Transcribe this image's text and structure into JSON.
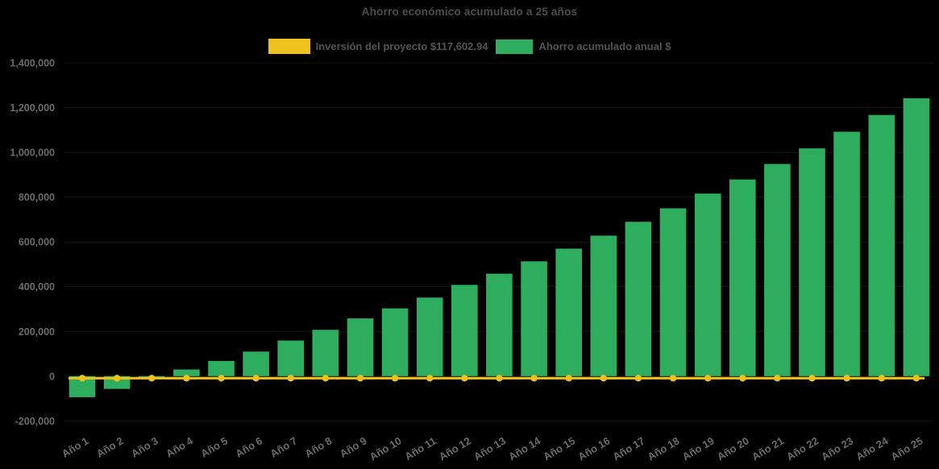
{
  "chart_data": {
    "type": "bar",
    "title": "Ahorro económico acumulado a 25 años",
    "categories": [
      "Año 1",
      "Año 2",
      "Año 3",
      "Año 4",
      "Año 5",
      "Año 6",
      "Año 7",
      "Año 8",
      "Año 9",
      "Año 10",
      "Año 11",
      "Año 12",
      "Año 13",
      "Año 14",
      "Año 15",
      "Año 16",
      "Año 17",
      "Año 18",
      "Año 19",
      "Año 20",
      "Año 21",
      "Año 22",
      "Año 23",
      "Año 24",
      "Año 25"
    ],
    "series": [
      {
        "name": "Inversión del proyecto $117,602.94",
        "type": "line",
        "color": "#EEC11E",
        "values": [
          0,
          0,
          0,
          0,
          0,
          0,
          0,
          0,
          0,
          0,
          0,
          0,
          0,
          0,
          0,
          0,
          0,
          0,
          0,
          0,
          0,
          0,
          0,
          0,
          0
        ]
      },
      {
        "name": "Ahorro acumulado anual $",
        "type": "bar",
        "color": "#2EAD5E",
        "values": [
          -94000,
          -57000,
          -5000,
          30000,
          68000,
          110000,
          159000,
          207000,
          258000,
          303000,
          351000,
          408000,
          458000,
          513000,
          570000,
          628000,
          690000,
          750000,
          816000,
          879000,
          948000,
          1018000,
          1092000,
          1167000,
          1242000
        ]
      }
    ],
    "xlabel": "",
    "ylabel": "",
    "ylim": [
      -200000,
      1400000
    ],
    "ytick_step": 200000,
    "ytick_labels": [
      "-200,000",
      "0",
      "200,000",
      "400,000",
      "600,000",
      "800,000",
      "1,000,000",
      "1,200,000",
      "1,400,000"
    ],
    "grid": false,
    "legend_position": "top-center",
    "colors": {
      "background": "#000000",
      "title_text": "#4d4d4d",
      "legend_text": "#545454",
      "axis_text": "#6b6b6b",
      "bar": "#2EAD5E",
      "line": "#EEC11E"
    }
  }
}
